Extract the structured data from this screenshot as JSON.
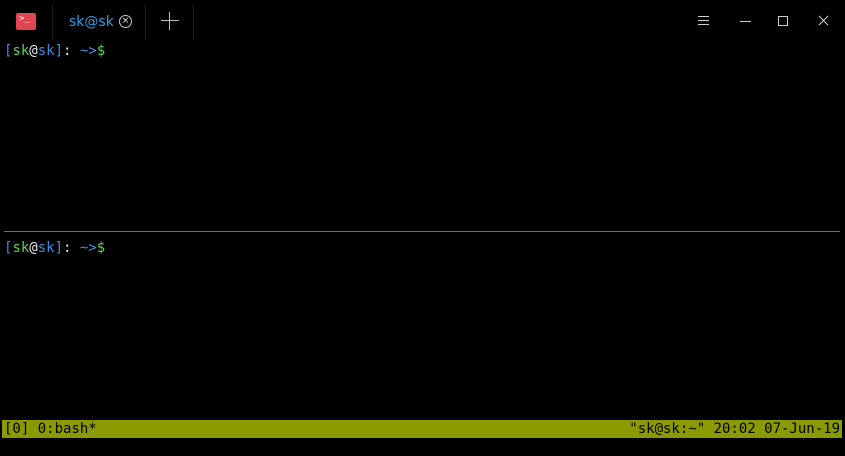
{
  "window": {
    "app_icon": "terminal-prompt-icon",
    "app_icon_glyph": ">_",
    "tab_title": "sk@sk",
    "tab_close_icon": "close-icon",
    "tab_close_glyph": "×",
    "new_tab_icon": "plus-icon",
    "controls": [
      "hamburger-menu-icon",
      "minimize-icon",
      "maximize-icon",
      "close-icon"
    ]
  },
  "panes": [
    {
      "prompt": {
        "open": "[",
        "user": "sk",
        "at": "@",
        "host": "sk",
        "close": "]",
        "colon": ": ",
        "path": "~>",
        "symbol": "$"
      }
    },
    {
      "prompt": {
        "open": "[",
        "user": "sk",
        "at": "@",
        "host": "sk",
        "close": "]",
        "colon": ": ",
        "path": "~>",
        "symbol": "$"
      }
    }
  ],
  "statusbar": {
    "left": "[0] 0:bash*",
    "right": "\"sk@sk:~\" 20:02 07-Jun-19"
  },
  "colors": {
    "background": "#000000",
    "tab_title": "#2f9fea",
    "app_icon": "#e0464f",
    "pane_divider": "#1fa33e",
    "statusbar": "#8a9a00",
    "prompt_user": "#5cd05c",
    "prompt_host": "#3c8cdc"
  }
}
